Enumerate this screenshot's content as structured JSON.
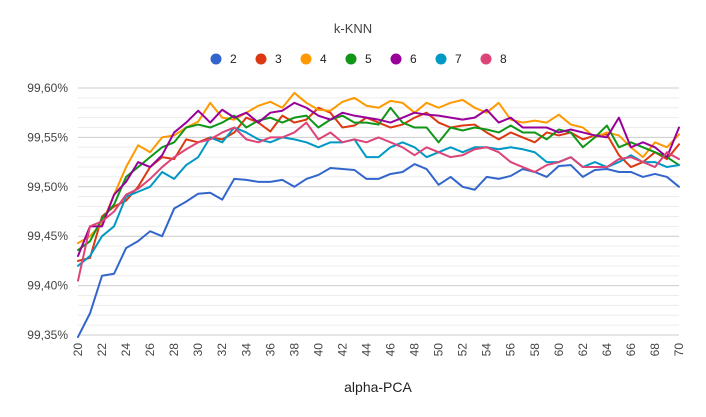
{
  "chart_data": {
    "type": "line",
    "title": "k-KNN",
    "xlabel": "alpha-PCA",
    "ylabel": "",
    "xlim": [
      20,
      70
    ],
    "ylim": [
      0.9935,
      0.996
    ],
    "x_ticks": [
      20,
      22,
      24,
      26,
      28,
      30,
      32,
      34,
      36,
      38,
      40,
      42,
      44,
      46,
      48,
      50,
      52,
      54,
      56,
      58,
      60,
      62,
      64,
      66,
      68,
      70
    ],
    "x_tick_labels": [
      "20",
      "22",
      "24",
      "26",
      "28",
      "30",
      "32",
      "34",
      "36",
      "38",
      "40",
      "42",
      "44",
      "46",
      "48",
      "50",
      "52",
      "54",
      "56",
      "58",
      "60",
      "62",
      "64",
      "66",
      "68",
      "70"
    ],
    "y_ticks": [
      0.9935,
      0.994,
      0.9945,
      0.995,
      0.9955,
      0.996
    ],
    "y_tick_labels": [
      "99,35%",
      "99,40%",
      "99,45%",
      "99,50%",
      "99,55%",
      "99,60%"
    ],
    "grid": true,
    "legend_position": "top",
    "x": [
      20,
      21,
      22,
      23,
      24,
      25,
      26,
      27,
      28,
      29,
      30,
      31,
      32,
      33,
      34,
      35,
      36,
      37,
      38,
      39,
      40,
      41,
      42,
      43,
      44,
      45,
      46,
      47,
      48,
      49,
      50,
      51,
      52,
      53,
      54,
      55,
      56,
      57,
      58,
      59,
      60,
      61,
      62,
      63,
      64,
      65,
      66,
      67,
      68,
      69,
      70
    ],
    "series": [
      {
        "name": "2",
        "color": "#3366cc",
        "values": [
          0.99348,
          0.99372,
          0.9941,
          0.99412,
          0.99438,
          0.99445,
          0.99455,
          0.9945,
          0.99478,
          0.99485,
          0.99493,
          0.99494,
          0.99487,
          0.99508,
          0.99507,
          0.99505,
          0.99505,
          0.99507,
          0.995,
          0.99508,
          0.99512,
          0.99519,
          0.99518,
          0.99517,
          0.99508,
          0.99508,
          0.99513,
          0.99515,
          0.99523,
          0.99518,
          0.99502,
          0.9951,
          0.995,
          0.99497,
          0.9951,
          0.99508,
          0.99511,
          0.99518,
          0.99515,
          0.9951,
          0.99521,
          0.99522,
          0.9951,
          0.99517,
          0.99518,
          0.99515,
          0.99515,
          0.9951,
          0.99513,
          0.9951,
          0.995
        ]
      },
      {
        "name": "3",
        "color": "#dc3912",
        "values": [
          0.99425,
          0.99428,
          0.9947,
          0.9948,
          0.99486,
          0.995,
          0.9952,
          0.9953,
          0.99528,
          0.99548,
          0.99545,
          0.9955,
          0.99548,
          0.99555,
          0.9957,
          0.99565,
          0.99556,
          0.99572,
          0.99565,
          0.99568,
          0.9958,
          0.99575,
          0.9956,
          0.99562,
          0.9957,
          0.99565,
          0.9956,
          0.99563,
          0.9957,
          0.99575,
          0.99565,
          0.9956,
          0.99562,
          0.99563,
          0.99555,
          0.99548,
          0.99555,
          0.9955,
          0.99545,
          0.99555,
          0.99552,
          0.99555,
          0.99548,
          0.99552,
          0.99553,
          0.99532,
          0.9952,
          0.99525,
          0.99535,
          0.99528,
          0.99543
        ]
      },
      {
        "name": "4",
        "color": "#ff9900",
        "values": [
          0.99443,
          0.9945,
          0.99463,
          0.99492,
          0.9952,
          0.99542,
          0.99535,
          0.9955,
          0.99552,
          0.9956,
          0.99566,
          0.99585,
          0.9957,
          0.99568,
          0.99575,
          0.99582,
          0.99586,
          0.9958,
          0.99595,
          0.99585,
          0.99578,
          0.99577,
          0.99586,
          0.9959,
          0.99582,
          0.9958,
          0.99587,
          0.99585,
          0.99575,
          0.99585,
          0.9958,
          0.99585,
          0.99588,
          0.9958,
          0.99575,
          0.99585,
          0.99568,
          0.99565,
          0.99567,
          0.99565,
          0.99573,
          0.99563,
          0.9956,
          0.9955,
          0.99555,
          0.99552,
          0.9954,
          0.9953,
          0.99545,
          0.9954,
          0.99553
        ]
      },
      {
        "name": "5",
        "color": "#109618",
        "values": [
          0.99436,
          0.99445,
          0.99468,
          0.99482,
          0.9951,
          0.9952,
          0.9953,
          0.9954,
          0.99545,
          0.9956,
          0.99563,
          0.9956,
          0.99565,
          0.99572,
          0.9956,
          0.99567,
          0.9957,
          0.99565,
          0.9957,
          0.99572,
          0.9956,
          0.99568,
          0.99572,
          0.99565,
          0.99565,
          0.99563,
          0.9958,
          0.99565,
          0.9956,
          0.9956,
          0.99545,
          0.9956,
          0.99557,
          0.9956,
          0.99558,
          0.99555,
          0.99562,
          0.99555,
          0.99555,
          0.99548,
          0.99558,
          0.99555,
          0.9954,
          0.9955,
          0.99562,
          0.9954,
          0.99545,
          0.9954,
          0.99535,
          0.9953,
          0.99522
        ]
      },
      {
        "name": "6",
        "color": "#990099",
        "values": [
          0.9943,
          0.9946,
          0.9946,
          0.99492,
          0.99505,
          0.99525,
          0.9952,
          0.99532,
          0.99555,
          0.99565,
          0.99577,
          0.99565,
          0.99578,
          0.9957,
          0.99575,
          0.99565,
          0.99575,
          0.99577,
          0.99585,
          0.9958,
          0.99572,
          0.99568,
          0.99575,
          0.99572,
          0.9957,
          0.99568,
          0.99565,
          0.9957,
          0.99575,
          0.99573,
          0.99572,
          0.9957,
          0.99568,
          0.9957,
          0.99578,
          0.99565,
          0.9957,
          0.9956,
          0.9956,
          0.9956,
          0.99555,
          0.99558,
          0.99555,
          0.99552,
          0.9955,
          0.9957,
          0.9954,
          0.99545,
          0.9954,
          0.9953,
          0.9956
        ]
      },
      {
        "name": "7",
        "color": "#0099c6",
        "values": [
          0.9942,
          0.9943,
          0.9945,
          0.9946,
          0.9949,
          0.99495,
          0.995,
          0.99515,
          0.99508,
          0.99522,
          0.9953,
          0.9955,
          0.99545,
          0.9956,
          0.99555,
          0.99548,
          0.99545,
          0.9955,
          0.99548,
          0.99545,
          0.9954,
          0.99545,
          0.99545,
          0.99548,
          0.9953,
          0.9953,
          0.9954,
          0.99545,
          0.9954,
          0.9953,
          0.99535,
          0.9954,
          0.99535,
          0.9954,
          0.9954,
          0.99538,
          0.9954,
          0.99538,
          0.99535,
          0.99525,
          0.99525,
          0.9953,
          0.9952,
          0.99525,
          0.9952,
          0.99525,
          0.99532,
          0.99525,
          0.99525,
          0.9952,
          0.99522
        ]
      },
      {
        "name": "8",
        "color": "#dd4477",
        "values": [
          0.99405,
          0.9946,
          0.99465,
          0.99475,
          0.99492,
          0.99498,
          0.99508,
          0.9952,
          0.9953,
          0.99538,
          0.99545,
          0.99548,
          0.99555,
          0.9956,
          0.99548,
          0.99545,
          0.9955,
          0.9955,
          0.99555,
          0.99565,
          0.99548,
          0.99555,
          0.99545,
          0.99548,
          0.99545,
          0.9955,
          0.99545,
          0.9954,
          0.99532,
          0.9954,
          0.99535,
          0.9953,
          0.99532,
          0.99538,
          0.9954,
          0.99535,
          0.99525,
          0.9952,
          0.99515,
          0.99522,
          0.99525,
          0.9953,
          0.9952,
          0.9952,
          0.9952,
          0.99528,
          0.9953,
          0.99525,
          0.9952,
          0.99535,
          0.99528
        ]
      }
    ]
  }
}
